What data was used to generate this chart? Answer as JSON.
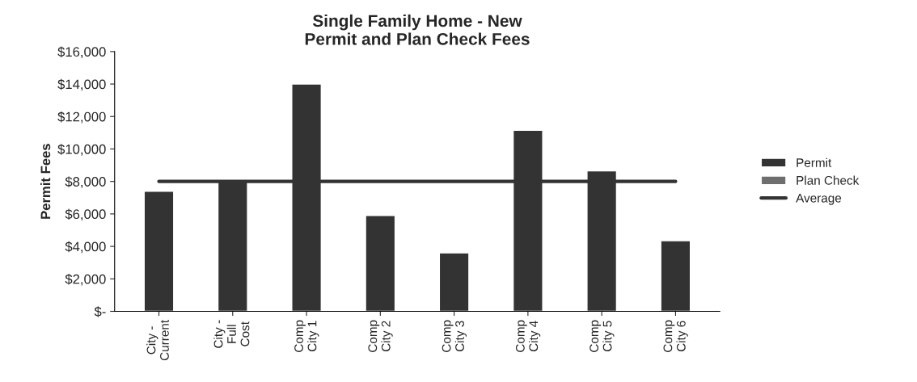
{
  "chart_data": {
    "type": "bar",
    "title": "Single Family Home - New\nPermit and Plan Check Fees",
    "ylabel": "Permit Fees",
    "categories": [
      "City -\nCurrent",
      "City -\nFull\nCost",
      "Comp\nCity 1",
      "Comp\nCity 2",
      "Comp\nCity 3",
      "Comp\nCity 4",
      "Comp\nCity 5",
      "Comp\nCity 6"
    ],
    "series": [
      {
        "name": "Permit",
        "color": "#333333",
        "values": [
          7400,
          8000,
          14000,
          5900,
          3600,
          11150,
          8650,
          4350
        ]
      },
      {
        "name": "Plan Check",
        "color": "#6e6e6e",
        "values": [
          null,
          null,
          null,
          null,
          null,
          null,
          null,
          null
        ]
      },
      {
        "name": "Average",
        "type": "line",
        "color": "#333333",
        "values": [
          8000,
          8000,
          8000,
          8000,
          8000,
          8000,
          8000,
          8000
        ]
      }
    ],
    "ylim": [
      0,
      16000
    ],
    "yticks": [
      {
        "value": 0,
        "label": "$-"
      },
      {
        "value": 2000,
        "label": "$2,000"
      },
      {
        "value": 4000,
        "label": "$4,000"
      },
      {
        "value": 6000,
        "label": "$6,000"
      },
      {
        "value": 8000,
        "label": "$8,000"
      },
      {
        "value": 10000,
        "label": "$10,000"
      },
      {
        "value": 12000,
        "label": "$12,000"
      },
      {
        "value": 14000,
        "label": "$14,000"
      },
      {
        "value": 16000,
        "label": "$16,000"
      }
    ],
    "grid": false,
    "legend": "right",
    "marker": "none"
  }
}
